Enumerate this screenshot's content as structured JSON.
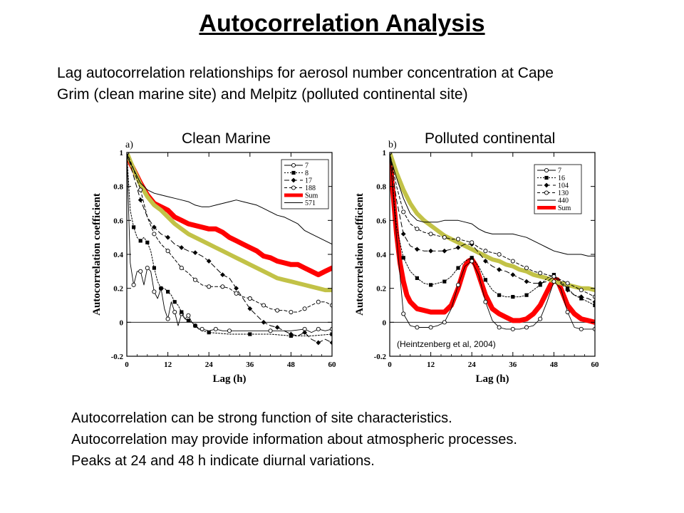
{
  "slide": {
    "title": "Autocorrelation Analysis",
    "intro_lines": [
      "Lag autocorrelation relationships for aerosol number concentration at Cape",
      "Grim (clean marine site) and Melpitz (polluted continental site)"
    ],
    "bullets": [
      "Autocorrelation can be strong function of site characteristics.",
      "Autocorrelation may provide information about atmospheric processes.",
      "Peaks at 24 and 48 h indicate diurnal variations."
    ]
  },
  "colors": {
    "sum_line": "#ff0000",
    "fit_line": "#c2c247",
    "data_line": "#000000"
  },
  "chart_data": [
    {
      "type": "line",
      "panel_label": "a)",
      "title": "Clean Marine",
      "xlabel": "Lag  (h)",
      "ylabel": "Autocorrelation coefficient",
      "xlim": [
        0,
        60
      ],
      "ylim": [
        -0.2,
        1
      ],
      "xticks": [
        0,
        12,
        24,
        36,
        48,
        60
      ],
      "yticks": [
        -0.2,
        0,
        0.2,
        0.4,
        0.6,
        0.8,
        1
      ],
      "ytick_labels": [
        "-0.2",
        "0",
        "0.2",
        "0.4",
        "0.6",
        "0.8",
        "1"
      ],
      "legend_position": "top-right",
      "series": [
        {
          "name": "7",
          "style": "open-circle",
          "x": [
            0,
            1,
            2,
            3,
            4,
            5,
            6,
            7,
            8,
            9,
            10,
            11,
            12,
            13,
            14,
            15,
            16,
            17,
            18,
            19,
            20,
            21,
            22,
            24,
            26,
            28,
            30,
            36,
            42,
            48,
            52,
            54,
            56,
            58,
            60
          ],
          "y": [
            1,
            0.35,
            0.22,
            0.3,
            0.3,
            0.22,
            0.32,
            0.3,
            0.18,
            0.14,
            0.2,
            0.08,
            0.02,
            0.12,
            0.06,
            -0.02,
            0.05,
            0.02,
            0.04,
            0,
            -0.02,
            -0.04,
            -0.04,
            -0.05,
            -0.04,
            -0.05,
            -0.05,
            -0.05,
            -0.05,
            -0.05,
            -0.04,
            -0.06,
            -0.04,
            -0.05,
            -0.04
          ]
        },
        {
          "name": "8",
          "style": "filled-square",
          "x": [
            0,
            1,
            2,
            3,
            4,
            5,
            6,
            7,
            8,
            9,
            10,
            11,
            12,
            13,
            14,
            15,
            16,
            17,
            18,
            19,
            20,
            22,
            24,
            30,
            36,
            42,
            48,
            54,
            60
          ],
          "y": [
            1,
            0.66,
            0.56,
            0.5,
            0.48,
            0.5,
            0.47,
            0.42,
            0.32,
            0.24,
            0.2,
            0.2,
            0.18,
            0.16,
            0.12,
            0.1,
            0.06,
            0.02,
            0.01,
            0,
            -0.02,
            -0.05,
            -0.06,
            -0.07,
            -0.07,
            -0.07,
            -0.08,
            -0.08,
            -0.07
          ]
        },
        {
          "name": "17",
          "style": "filled-diamond",
          "x": [
            0,
            2,
            4,
            6,
            8,
            10,
            12,
            14,
            16,
            18,
            20,
            22,
            24,
            26,
            28,
            30,
            32,
            34,
            36,
            38,
            40,
            42,
            44,
            46,
            48,
            50,
            52,
            54,
            56,
            58,
            60
          ],
          "y": [
            1,
            0.86,
            0.72,
            0.62,
            0.56,
            0.52,
            0.5,
            0.46,
            0.44,
            0.42,
            0.41,
            0.39,
            0.36,
            0.32,
            0.28,
            0.26,
            0.2,
            0.14,
            0.08,
            0.04,
            0,
            -0.02,
            -0.03,
            -0.05,
            -0.07,
            -0.08,
            -0.06,
            -0.1,
            -0.12,
            -0.1,
            -0.12
          ]
        },
        {
          "name": "188",
          "style": "open-circle-dashed",
          "x": [
            0,
            2,
            4,
            6,
            8,
            10,
            12,
            14,
            16,
            18,
            20,
            22,
            24,
            26,
            28,
            30,
            32,
            34,
            36,
            38,
            40,
            42,
            44,
            46,
            48,
            50,
            52,
            54,
            56,
            58,
            60
          ],
          "y": [
            1,
            0.9,
            0.78,
            0.62,
            0.52,
            0.46,
            0.42,
            0.37,
            0.32,
            0.29,
            0.25,
            0.22,
            0.21,
            0.21,
            0.21,
            0.2,
            0.17,
            0.15,
            0.14,
            0.12,
            0.1,
            0.08,
            0.07,
            0.07,
            0.06,
            0.06,
            0.08,
            0.1,
            0.12,
            0.12,
            0.1
          ]
        },
        {
          "name": "Sum",
          "style": "thick-red",
          "x": [
            0,
            2,
            4,
            6,
            8,
            10,
            12,
            14,
            16,
            18,
            20,
            22,
            24,
            26,
            28,
            30,
            32,
            34,
            36,
            38,
            40,
            42,
            44,
            46,
            48,
            50,
            52,
            54,
            56,
            58,
            60
          ],
          "y": [
            0.98,
            0.9,
            0.82,
            0.75,
            0.7,
            0.68,
            0.66,
            0.62,
            0.6,
            0.58,
            0.57,
            0.56,
            0.55,
            0.55,
            0.53,
            0.5,
            0.48,
            0.46,
            0.44,
            0.42,
            0.39,
            0.38,
            0.36,
            0.35,
            0.34,
            0.34,
            0.32,
            0.3,
            0.28,
            0.3,
            0.32
          ]
        },
        {
          "name": "571",
          "style": "solid-thin",
          "x": [
            0,
            2,
            4,
            6,
            8,
            10,
            12,
            14,
            16,
            18,
            20,
            22,
            24,
            26,
            28,
            30,
            32,
            34,
            36,
            38,
            40,
            42,
            44,
            46,
            48,
            50,
            52,
            54,
            56,
            58,
            60
          ],
          "y": [
            0.98,
            0.9,
            0.82,
            0.78,
            0.76,
            0.75,
            0.74,
            0.73,
            0.72,
            0.71,
            0.69,
            0.68,
            0.68,
            0.69,
            0.7,
            0.71,
            0.72,
            0.71,
            0.7,
            0.69,
            0.67,
            0.65,
            0.63,
            0.62,
            0.6,
            0.58,
            0.54,
            0.52,
            0.5,
            0.48,
            0.46
          ]
        },
        {
          "name": "",
          "style": "thick-olive",
          "x": [
            0,
            2,
            4,
            6,
            8,
            10,
            12,
            14,
            16,
            18,
            20,
            22,
            24,
            26,
            28,
            30,
            32,
            34,
            36,
            38,
            40,
            42,
            44,
            46,
            48,
            50,
            52,
            54,
            56,
            58,
            60
          ],
          "y": [
            1,
            0.9,
            0.81,
            0.74,
            0.69,
            0.66,
            0.62,
            0.58,
            0.55,
            0.52,
            0.5,
            0.48,
            0.46,
            0.44,
            0.42,
            0.4,
            0.38,
            0.36,
            0.34,
            0.32,
            0.3,
            0.28,
            0.26,
            0.25,
            0.24,
            0.23,
            0.22,
            0.21,
            0.2,
            0.19,
            0.19
          ]
        }
      ]
    },
    {
      "type": "line",
      "panel_label": "b)",
      "title": "Polluted continental",
      "xlabel": "Lag  (h)",
      "ylabel": "Autocorrelation coefficient",
      "annotation": "(Heintzenberg et al, 2004)",
      "xlim": [
        0,
        60
      ],
      "ylim": [
        -0.2,
        1
      ],
      "xticks": [
        0,
        12,
        24,
        36,
        48,
        60
      ],
      "yticks": [
        -0.2,
        0,
        0.2,
        0.4,
        0.6,
        0.8,
        1
      ],
      "ytick_labels": [
        "-0.2",
        "0",
        "0.2",
        "0.4",
        "0.6",
        "0.8",
        "1"
      ],
      "legend_position": "top-right",
      "series": [
        {
          "name": "7",
          "style": "open-circle",
          "x": [
            0,
            2,
            4,
            6,
            8,
            10,
            12,
            14,
            16,
            18,
            20,
            22,
            24,
            26,
            28,
            30,
            32,
            34,
            36,
            38,
            40,
            42,
            44,
            46,
            48,
            50,
            52,
            54,
            56,
            58,
            60
          ],
          "y": [
            1,
            0.5,
            0.05,
            -0.02,
            -0.03,
            -0.03,
            -0.03,
            -0.02,
            0,
            0.08,
            0.22,
            0.33,
            0.36,
            0.28,
            0.12,
            0.01,
            -0.03,
            -0.04,
            -0.04,
            -0.04,
            -0.03,
            -0.02,
            0.02,
            0.12,
            0.24,
            0.2,
            0.06,
            -0.03,
            -0.04,
            -0.04,
            -0.04
          ]
        },
        {
          "name": "16",
          "style": "filled-square",
          "x": [
            0,
            2,
            4,
            6,
            8,
            10,
            12,
            14,
            16,
            18,
            20,
            22,
            24,
            26,
            28,
            30,
            32,
            34,
            36,
            38,
            40,
            42,
            44,
            46,
            48,
            50,
            52,
            54,
            56,
            58,
            60
          ],
          "y": [
            1,
            0.56,
            0.38,
            0.3,
            0.26,
            0.23,
            0.22,
            0.23,
            0.24,
            0.27,
            0.32,
            0.36,
            0.38,
            0.33,
            0.25,
            0.19,
            0.16,
            0.15,
            0.15,
            0.15,
            0.16,
            0.19,
            0.22,
            0.26,
            0.28,
            0.24,
            0.2,
            0.16,
            0.14,
            0.12,
            0.1
          ]
        },
        {
          "name": "104",
          "style": "filled-diamond",
          "x": [
            0,
            2,
            4,
            6,
            8,
            10,
            12,
            14,
            16,
            18,
            20,
            22,
            24,
            26,
            28,
            30,
            32,
            34,
            36,
            38,
            40,
            42,
            44,
            46,
            48,
            50,
            52,
            54,
            56,
            58,
            60
          ],
          "y": [
            1,
            0.72,
            0.52,
            0.45,
            0.43,
            0.42,
            0.42,
            0.42,
            0.42,
            0.43,
            0.44,
            0.46,
            0.46,
            0.41,
            0.36,
            0.33,
            0.31,
            0.3,
            0.28,
            0.26,
            0.24,
            0.23,
            0.23,
            0.24,
            0.27,
            0.23,
            0.19,
            0.16,
            0.15,
            0.14,
            0.12
          ]
        },
        {
          "name": "130",
          "style": "open-circle-dashed",
          "x": [
            0,
            2,
            4,
            6,
            8,
            10,
            12,
            14,
            16,
            18,
            20,
            22,
            24,
            26,
            28,
            30,
            32,
            34,
            36,
            38,
            40,
            42,
            44,
            46,
            48,
            50,
            52,
            54,
            56,
            58,
            60
          ],
          "y": [
            1,
            0.8,
            0.65,
            0.58,
            0.55,
            0.53,
            0.52,
            0.51,
            0.5,
            0.49,
            0.49,
            0.48,
            0.47,
            0.44,
            0.42,
            0.41,
            0.4,
            0.38,
            0.36,
            0.34,
            0.32,
            0.3,
            0.29,
            0.28,
            0.27,
            0.25,
            0.23,
            0.21,
            0.19,
            0.17,
            0.15
          ]
        },
        {
          "name": "440",
          "style": "solid-thin",
          "x": [
            0,
            2,
            4,
            6,
            8,
            10,
            12,
            14,
            16,
            18,
            20,
            22,
            24,
            26,
            28,
            30,
            32,
            34,
            36,
            38,
            40,
            42,
            44,
            46,
            48,
            50,
            52,
            54,
            56,
            58,
            60
          ],
          "y": [
            0.98,
            0.85,
            0.73,
            0.64,
            0.6,
            0.59,
            0.59,
            0.59,
            0.6,
            0.6,
            0.6,
            0.59,
            0.58,
            0.55,
            0.53,
            0.52,
            0.52,
            0.52,
            0.52,
            0.51,
            0.5,
            0.48,
            0.46,
            0.44,
            0.42,
            0.41,
            0.4,
            0.4,
            0.4,
            0.39,
            0.39
          ]
        },
        {
          "name": "Sum",
          "style": "thick-red",
          "x": [
            0,
            1,
            2,
            3,
            4,
            5,
            6,
            8,
            10,
            12,
            14,
            16,
            18,
            20,
            22,
            23,
            24,
            25,
            26,
            28,
            30,
            32,
            34,
            36,
            38,
            40,
            42,
            44,
            46,
            47,
            48,
            49,
            50,
            52,
            54,
            56,
            58,
            60
          ],
          "y": [
            0.98,
            0.75,
            0.52,
            0.35,
            0.24,
            0.16,
            0.12,
            0.08,
            0.07,
            0.06,
            0.06,
            0.06,
            0.1,
            0.2,
            0.33,
            0.36,
            0.37,
            0.34,
            0.28,
            0.16,
            0.08,
            0.05,
            0.03,
            0.01,
            0.01,
            0.02,
            0.05,
            0.1,
            0.18,
            0.22,
            0.25,
            0.25,
            0.2,
            0.1,
            0.05,
            0.02,
            0.01,
            0
          ]
        },
        {
          "name": "",
          "style": "thick-olive",
          "x": [
            0,
            2,
            4,
            6,
            8,
            10,
            12,
            14,
            16,
            18,
            20,
            22,
            24,
            26,
            28,
            30,
            32,
            34,
            36,
            38,
            40,
            42,
            44,
            46,
            48,
            50,
            52,
            54,
            56,
            58,
            60
          ],
          "y": [
            1,
            0.88,
            0.78,
            0.7,
            0.64,
            0.6,
            0.57,
            0.54,
            0.51,
            0.49,
            0.47,
            0.45,
            0.43,
            0.41,
            0.39,
            0.37,
            0.36,
            0.34,
            0.33,
            0.31,
            0.3,
            0.28,
            0.27,
            0.26,
            0.24,
            0.23,
            0.22,
            0.21,
            0.2,
            0.2,
            0.19
          ]
        }
      ]
    }
  ]
}
